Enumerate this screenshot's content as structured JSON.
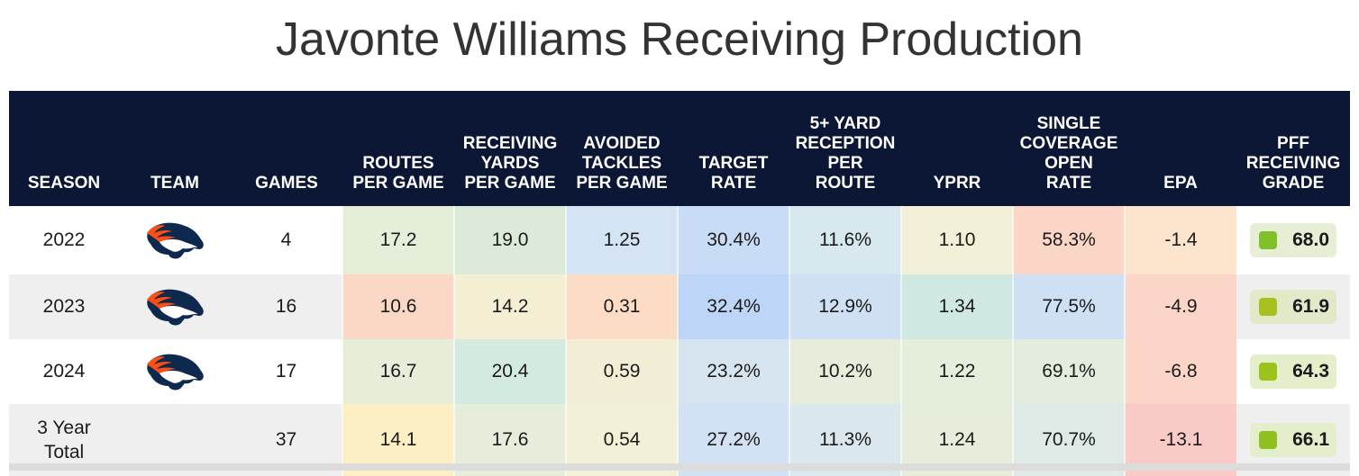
{
  "title": "Javonte Williams Receiving Production",
  "columns": [
    [
      "SEASON"
    ],
    [
      "TEAM"
    ],
    [
      "GAMES"
    ],
    [
      "ROUTES",
      "PER GAME"
    ],
    [
      "RECEIVING",
      "YARDS",
      "PER GAME"
    ],
    [
      "AVOIDED",
      "TACKLES",
      "PER GAME"
    ],
    [
      "TARGET",
      "RATE"
    ],
    [
      "5+ YARD",
      "RECEPTION",
      "PER",
      "ROUTE"
    ],
    [
      "YPRR"
    ],
    [
      "SINGLE",
      "COVERAGE",
      "OPEN",
      "RATE"
    ],
    [
      "EPA"
    ],
    [
      "PFF",
      "RECEIVING",
      "GRADE"
    ]
  ],
  "team_logo_icon": "denver-broncos-horse-logo",
  "rows": [
    {
      "season": [
        "2022"
      ],
      "show_logo": true,
      "games": "4",
      "routes_pg": {
        "v": "17.2",
        "bg": "#e4eed9"
      },
      "rec_yds_pg": {
        "v": "19.0",
        "bg": "#dcebd9"
      },
      "avoided_tackles_pg": {
        "v": "1.25",
        "bg": "#d4e4f4"
      },
      "target_rate": {
        "v": "30.4%",
        "bg": "#c8dcf6"
      },
      "rec5_per_route": {
        "v": "11.6%",
        "bg": "#d7e8ee"
      },
      "yprr": {
        "v": "1.10",
        "bg": "#f2f0d6"
      },
      "single_cov_open": {
        "v": "58.3%",
        "bg": "#fbd6c6"
      },
      "epa": {
        "v": "-1.4",
        "bg": "#fde4cc"
      },
      "grade": {
        "v": "68.0",
        "pill_bg": "#e6efd6",
        "dot": "#7fbf2a"
      }
    },
    {
      "season": [
        "2023"
      ],
      "show_logo": true,
      "games": "16",
      "routes_pg": {
        "v": "10.6",
        "bg": "#fad8c5"
      },
      "rec_yds_pg": {
        "v": "14.2",
        "bg": "#f4efd3"
      },
      "avoided_tackles_pg": {
        "v": "0.31",
        "bg": "#fcdcc4"
      },
      "target_rate": {
        "v": "32.4%",
        "bg": "#bdd6f8"
      },
      "rec5_per_route": {
        "v": "12.9%",
        "bg": "#cfe0f4"
      },
      "yprr": {
        "v": "1.34",
        "bg": "#cfe8e2"
      },
      "single_cov_open": {
        "v": "77.5%",
        "bg": "#d0e0f4"
      },
      "epa": {
        "v": "-4.9",
        "bg": "#fbd6c8"
      },
      "grade": {
        "v": "61.9",
        "pill_bg": "#e1e9c8",
        "dot": "#a8c11e"
      }
    },
    {
      "season": [
        "2024"
      ],
      "show_logo": true,
      "games": "17",
      "routes_pg": {
        "v": "16.7",
        "bg": "#e6eed9"
      },
      "rec_yds_pg": {
        "v": "20.4",
        "bg": "#d3eae0"
      },
      "avoided_tackles_pg": {
        "v": "0.59",
        "bg": "#f2eed5"
      },
      "target_rate": {
        "v": "23.2%",
        "bg": "#d5e4ee"
      },
      "rec5_per_route": {
        "v": "10.2%",
        "bg": "#e6eedb"
      },
      "yprr": {
        "v": "1.22",
        "bg": "#e4eedb"
      },
      "single_cov_open": {
        "v": "69.1%",
        "bg": "#e4ecdd"
      },
      "epa": {
        "v": "-6.8",
        "bg": "#fbd5c8"
      },
      "grade": {
        "v": "64.3",
        "pill_bg": "#e4eecb",
        "dot": "#9cc31c"
      }
    },
    {
      "season": [
        "3 Year",
        "Total"
      ],
      "show_logo": false,
      "games": "37",
      "routes_pg": {
        "v": "14.1",
        "bg": "#fcefc3"
      },
      "rec_yds_pg": {
        "v": "17.6",
        "bg": "#e6eedb"
      },
      "avoided_tackles_pg": {
        "v": "0.54",
        "bg": "#f2f0d6"
      },
      "target_rate": {
        "v": "27.2%",
        "bg": "#d3e1f4"
      },
      "rec5_per_route": {
        "v": "11.3%",
        "bg": "#dae8ee"
      },
      "yprr": {
        "v": "1.24",
        "bg": "#e6eedb"
      },
      "single_cov_open": {
        "v": "70.7%",
        "bg": "#dfe9e6"
      },
      "epa": {
        "v": "-13.1",
        "bg": "#f9cac6"
      },
      "grade": {
        "v": "66.1",
        "pill_bg": "#e4eecc",
        "dot": "#8fc020"
      }
    }
  ]
}
